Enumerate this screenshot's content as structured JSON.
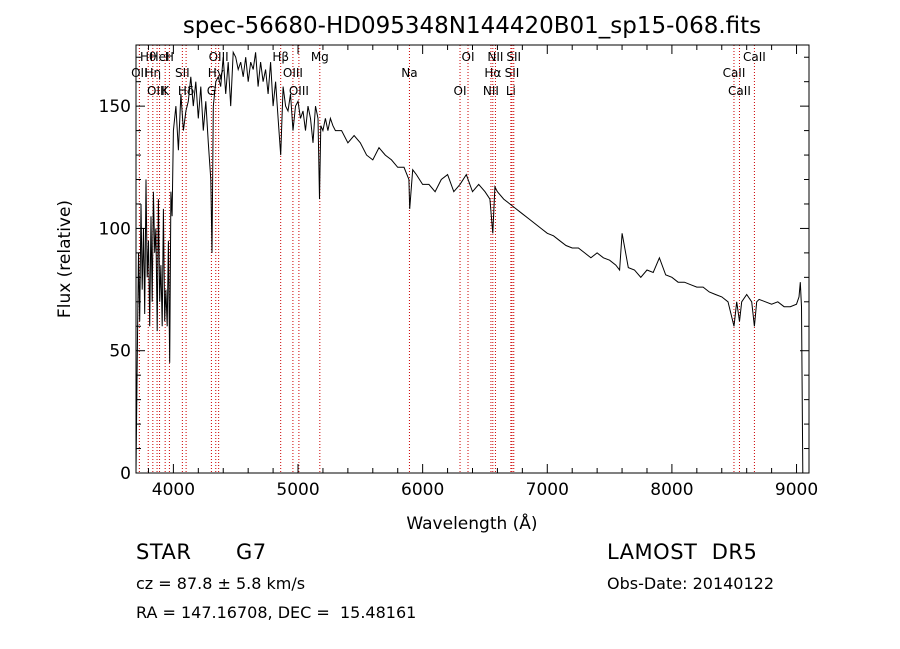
{
  "chart_data": {
    "type": "line",
    "title": "spec-56680-HD095348N144420B01_sp15-068.fits",
    "xlabel": "Wavelength (Å)",
    "ylabel": "Flux (relative)",
    "xlim": [
      3700,
      9100
    ],
    "ylim": [
      0,
      175
    ],
    "xticks": [
      4000,
      5000,
      6000,
      7000,
      8000,
      9000
    ],
    "yticks": [
      0,
      50,
      100,
      150
    ],
    "grid": false,
    "line_color": "#000000",
    "marker_color": "#cc0000",
    "series": [
      {
        "x": [
          3700,
          3710,
          3720,
          3730,
          3740,
          3750,
          3760,
          3770,
          3780,
          3790,
          3800,
          3810,
          3820,
          3830,
          3840,
          3850,
          3860,
          3870,
          3880,
          3890,
          3900,
          3910,
          3920,
          3930,
          3940,
          3950,
          3960,
          3970,
          3980,
          3990,
          4000,
          4020,
          4040,
          4060,
          4080,
          4100,
          4120,
          4140,
          4160,
          4180,
          4200,
          4220,
          4240,
          4260,
          4280,
          4300,
          4310,
          4320,
          4340,
          4360,
          4380,
          4400,
          4420,
          4440,
          4460,
          4480,
          4500,
          4520,
          4540,
          4560,
          4580,
          4600,
          4620,
          4640,
          4660,
          4680,
          4700,
          4720,
          4740,
          4760,
          4780,
          4800,
          4820,
          4840,
          4861,
          4880,
          4900,
          4920,
          4940,
          4960,
          4980,
          5000,
          5020,
          5040,
          5060,
          5080,
          5100,
          5120,
          5140,
          5160,
          5172,
          5183,
          5200,
          5220,
          5240,
          5260,
          5280,
          5300,
          5350,
          5400,
          5450,
          5500,
          5550,
          5600,
          5650,
          5700,
          5750,
          5800,
          5850,
          5890,
          5896,
          5920,
          5950,
          6000,
          6050,
          6100,
          6150,
          6200,
          6250,
          6300,
          6350,
          6400,
          6450,
          6500,
          6540,
          6563,
          6580,
          6600,
          6650,
          6700,
          6750,
          6800,
          6850,
          6900,
          6950,
          7000,
          7050,
          7100,
          7150,
          7200,
          7250,
          7300,
          7350,
          7400,
          7450,
          7500,
          7550,
          7580,
          7600,
          7650,
          7700,
          7750,
          7800,
          7850,
          7900,
          7950,
          8000,
          8050,
          8100,
          8150,
          8200,
          8250,
          8300,
          8350,
          8400,
          8450,
          8498,
          8520,
          8542,
          8560,
          8600,
          8640,
          8662,
          8680,
          8700,
          8750,
          8800,
          8850,
          8900,
          8950,
          9000,
          9020,
          9030,
          9040,
          9050
        ],
        "values": [
          0,
          45,
          90,
          62,
          110,
          75,
          100,
          65,
          120,
          80,
          95,
          60,
          105,
          70,
          115,
          90,
          100,
          58,
          112,
          70,
          85,
          60,
          108,
          62,
          75,
          60,
          95,
          45,
          115,
          105,
          140,
          150,
          132,
          155,
          140,
          148,
          152,
          162,
          150,
          160,
          145,
          158,
          140,
          152,
          135,
          120,
          90,
          150,
          160,
          162,
          158,
          170,
          155,
          168,
          150,
          172,
          170,
          165,
          168,
          162,
          170,
          160,
          168,
          165,
          172,
          158,
          168,
          160,
          165,
          155,
          168,
          150,
          160,
          145,
          130,
          158,
          150,
          148,
          155,
          140,
          150,
          152,
          145,
          148,
          140,
          150,
          145,
          135,
          150,
          145,
          112,
          142,
          140,
          145,
          140,
          145,
          142,
          140,
          140,
          135,
          138,
          135,
          130,
          128,
          133,
          130,
          128,
          125,
          125,
          120,
          108,
          124,
          122,
          118,
          118,
          115,
          120,
          122,
          115,
          118,
          122,
          115,
          118,
          115,
          112,
          98,
          117,
          115,
          112,
          110,
          108,
          106,
          104,
          102,
          100,
          98,
          97,
          95,
          93,
          92,
          92,
          90,
          88,
          90,
          88,
          87,
          85,
          83,
          98,
          84,
          83,
          80,
          83,
          82,
          88,
          81,
          80,
          78,
          78,
          77,
          76,
          76,
          74,
          73,
          72,
          70,
          60,
          70,
          62,
          70,
          73,
          70,
          60,
          70,
          71,
          70,
          69,
          70,
          68,
          68,
          69,
          72,
          78,
          68,
          0
        ]
      }
    ],
    "lines": [
      {
        "label": "Hθ",
        "wavelength": 3798
      },
      {
        "label": "OII",
        "wavelength": 3727
      },
      {
        "label": "OIII",
        "wavelength": 3869
      },
      {
        "label": "HeI",
        "wavelength": 3889
      },
      {
        "label": "Hη",
        "wavelength": 3835
      },
      {
        "label": "K",
        "wavelength": 3934
      },
      {
        "label": "H",
        "wavelength": 3968
      },
      {
        "label": "SII",
        "wavelength": 4072
      },
      {
        "label": "Hδ",
        "wavelength": 4102
      },
      {
        "label": "OIII",
        "wavelength": 4363
      },
      {
        "label": "Hγ",
        "wavelength": 4340
      },
      {
        "label": "G",
        "wavelength": 4305
      },
      {
        "label": "Hβ",
        "wavelength": 4861
      },
      {
        "label": "OIII",
        "wavelength": 4959
      },
      {
        "label": "OIII",
        "wavelength": 5007
      },
      {
        "label": "Mg",
        "wavelength": 5175
      },
      {
        "label": "Na",
        "wavelength": 5894
      },
      {
        "label": "OI",
        "wavelength": 6300
      },
      {
        "label": "OI",
        "wavelength": 6364
      },
      {
        "label": "Hα",
        "wavelength": 6563
      },
      {
        "label": "NII",
        "wavelength": 6548
      },
      {
        "label": "NII",
        "wavelength": 6584
      },
      {
        "label": "SII",
        "wavelength": 6717
      },
      {
        "label": "Li",
        "wavelength": 6708
      },
      {
        "label": "SII",
        "wavelength": 6731
      },
      {
        "label": "CaII",
        "wavelength": 8498
      },
      {
        "label": "CaII",
        "wavelength": 8542
      },
      {
        "label": "CaII",
        "wavelength": 8662
      }
    ]
  },
  "info": {
    "class": "STAR",
    "subclass": "G7",
    "survey": "LAMOST  DR5",
    "cz": "cz = 87.8 ± 5.8 km/s",
    "obs_date": "Obs-Date: 20140122",
    "radec": "RA = 147.16708, DEC =  15.48161"
  }
}
